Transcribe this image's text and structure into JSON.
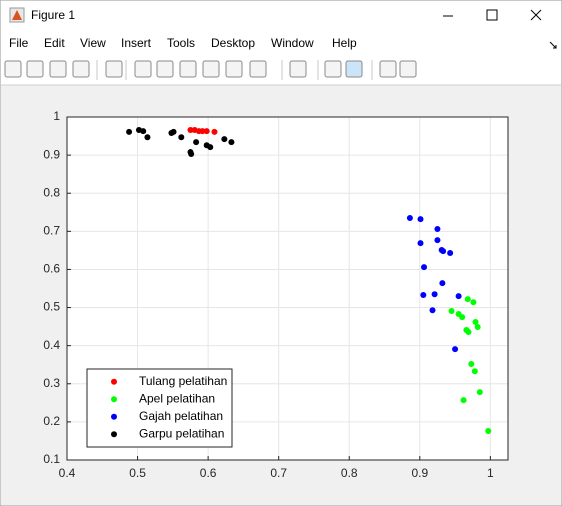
{
  "window": {
    "title": "Figure 1",
    "menu": [
      "File",
      "Edit",
      "View",
      "Insert",
      "Tools",
      "Desktop",
      "Window",
      "Help"
    ]
  },
  "chart_data": {
    "type": "scatter",
    "xlim": [
      0.4,
      1.025
    ],
    "ylim": [
      0.1,
      1
    ],
    "xticks": [
      0.4,
      0.5,
      0.6,
      0.7,
      0.8,
      0.9,
      1
    ],
    "yticks": [
      0.1,
      0.2,
      0.3,
      0.4,
      0.5,
      0.6,
      0.7,
      0.8,
      0.9,
      1
    ],
    "grid": true,
    "legend": "lower left",
    "series": [
      {
        "name": "Tulang pelatihan",
        "color": "#ff0000",
        "x": [
          0.575,
          0.581,
          0.587,
          0.592,
          0.598,
          0.609
        ],
        "y": [
          0.966,
          0.966,
          0.963,
          0.963,
          0.963,
          0.961
        ]
      },
      {
        "name": "Apel pelatihan",
        "color": "#00ff00",
        "x": [
          0.968,
          0.976,
          0.945,
          0.955,
          0.96,
          0.979,
          0.982,
          0.966,
          0.969,
          0.973,
          0.978,
          0.985,
          0.962,
          0.997
        ],
        "y": [
          0.522,
          0.514,
          0.491,
          0.483,
          0.475,
          0.462,
          0.449,
          0.441,
          0.436,
          0.352,
          0.333,
          0.278,
          0.257,
          0.176
        ]
      },
      {
        "name": "Gajah pelatihan",
        "color": "#0000ff",
        "x": [
          0.886,
          0.901,
          0.925,
          0.925,
          0.931,
          0.933,
          0.943,
          0.901,
          0.906,
          0.932,
          0.921,
          0.905,
          0.955,
          0.918,
          0.95
        ],
        "y": [
          0.735,
          0.732,
          0.706,
          0.677,
          0.651,
          0.648,
          0.643,
          0.669,
          0.606,
          0.564,
          0.535,
          0.533,
          0.53,
          0.493,
          0.391
        ]
      },
      {
        "name": "Garpu pelatihan",
        "color": "#000000",
        "x": [
          0.488,
          0.502,
          0.508,
          0.514,
          0.548,
          0.551,
          0.562,
          0.575,
          0.576,
          0.583,
          0.598,
          0.603,
          0.623,
          0.633
        ],
        "y": [
          0.961,
          0.966,
          0.963,
          0.947,
          0.958,
          0.961,
          0.947,
          0.908,
          0.903,
          0.934,
          0.926,
          0.921,
          0.942,
          0.934
        ]
      }
    ]
  }
}
